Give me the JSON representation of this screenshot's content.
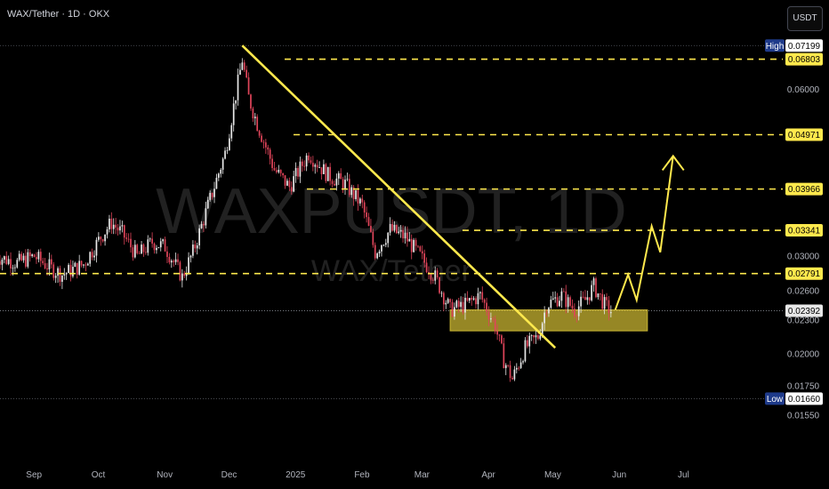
{
  "header": {
    "symbol_title": "WAX/Tether · 1D · OKX",
    "currency_button": "USDT"
  },
  "watermark": {
    "main": "WAXPUSDT, 1D",
    "sub": "WAX/Tether"
  },
  "colors": {
    "background": "#000000",
    "up_candle": "#e8e8e8",
    "down_candle": "#e0455a",
    "trend_line": "#ffe94d",
    "level_line": "#ffe94d",
    "zone_fill": "#c8b432",
    "axis_text": "#b2b5be",
    "high_low_tag": "#1e3a8a"
  },
  "chart_data": {
    "type": "candlestick",
    "y_scale": "log",
    "ylim": [
      0.01455,
      0.0745
    ],
    "x_tick_labels": [
      "Sep",
      "Oct",
      "Nov",
      "Dec",
      "2025",
      "Feb",
      "Mar",
      "Apr",
      "May",
      "Jun",
      "Jul"
    ],
    "y_tick_labels": [
      "0.06000",
      "0.03000",
      "0.02600",
      "0.02300",
      "0.02000",
      "0.01750",
      "0.01550"
    ],
    "price_tags": [
      {
        "label": "High",
        "value": "0.07199"
      },
      {
        "label": "",
        "value": "0.06803"
      },
      {
        "label": "",
        "value": "0.04971"
      },
      {
        "label": "",
        "value": "0.03966"
      },
      {
        "label": "",
        "value": "0.03341"
      },
      {
        "label": "",
        "value": "0.02791"
      },
      {
        "label": "",
        "value": "0.02392"
      },
      {
        "label": "Low",
        "value": "0.01660"
      }
    ],
    "horizontal_levels": [
      0.06803,
      0.04971,
      0.03966,
      0.03341,
      0.02791
    ],
    "high_value": 0.07199,
    "low_value": 0.0166,
    "last_price": 0.02392,
    "support_zone": {
      "from_date": "2025-03-10",
      "to_date": "2025-06-10",
      "low": 0.022,
      "high": 0.024
    },
    "trend_line": {
      "from": {
        "date": "2024-12-03",
        "price": 0.072
      },
      "to": {
        "date": "2025-04-28",
        "price": 0.0205
      }
    },
    "projection_path": [
      {
        "date": "2025-05-26",
        "price": 0.024
      },
      {
        "date": "2025-06-01",
        "price": 0.0278
      },
      {
        "date": "2025-06-05",
        "price": 0.025
      },
      {
        "date": "2025-06-12",
        "price": 0.034
      },
      {
        "date": "2025-06-16",
        "price": 0.0305
      },
      {
        "date": "2025-06-22",
        "price": 0.0455
      }
    ],
    "close_path": [
      [
        "2024-08-10",
        0.03
      ],
      [
        "2024-08-20",
        0.0292
      ],
      [
        "2024-08-28",
        0.03
      ],
      [
        "2024-09-05",
        0.0285
      ],
      [
        "2024-09-10",
        0.0278
      ],
      [
        "2024-09-20",
        0.029
      ],
      [
        "2024-09-28",
        0.0325
      ],
      [
        "2024-10-03",
        0.0345
      ],
      [
        "2024-10-08",
        0.033
      ],
      [
        "2024-10-15",
        0.03
      ],
      [
        "2024-10-22",
        0.0318
      ],
      [
        "2024-10-28",
        0.0312
      ],
      [
        "2024-11-05",
        0.0275
      ],
      [
        "2024-11-10",
        0.0305
      ],
      [
        "2024-11-18",
        0.038
      ],
      [
        "2024-11-25",
        0.046
      ],
      [
        "2024-12-03",
        0.068
      ],
      [
        "2024-12-06",
        0.058
      ],
      [
        "2024-12-10",
        0.052
      ],
      [
        "2024-12-18",
        0.043
      ],
      [
        "2024-12-25",
        0.04
      ],
      [
        "2025-01-03",
        0.046
      ],
      [
        "2025-01-12",
        0.042
      ],
      [
        "2025-01-20",
        0.0405
      ],
      [
        "2025-01-28",
        0.037
      ],
      [
        "2025-02-03",
        0.0305
      ],
      [
        "2025-02-10",
        0.0335
      ],
      [
        "2025-02-17",
        0.0325
      ],
      [
        "2025-02-24",
        0.03
      ],
      [
        "2025-03-03",
        0.0275
      ],
      [
        "2025-03-10",
        0.024
      ],
      [
        "2025-03-17",
        0.0245
      ],
      [
        "2025-03-24",
        0.0255
      ],
      [
        "2025-03-31",
        0.0225
      ],
      [
        "2025-04-04",
        0.0195
      ],
      [
        "2025-04-08",
        0.018
      ],
      [
        "2025-04-14",
        0.0205
      ],
      [
        "2025-04-20",
        0.0215
      ],
      [
        "2025-04-24",
        0.0245
      ],
      [
        "2025-05-01",
        0.0255
      ],
      [
        "2025-05-07",
        0.024
      ],
      [
        "2025-05-12",
        0.025
      ],
      [
        "2025-05-16",
        0.0265
      ],
      [
        "2025-05-21",
        0.0245
      ],
      [
        "2025-05-24",
        0.0239
      ]
    ]
  }
}
